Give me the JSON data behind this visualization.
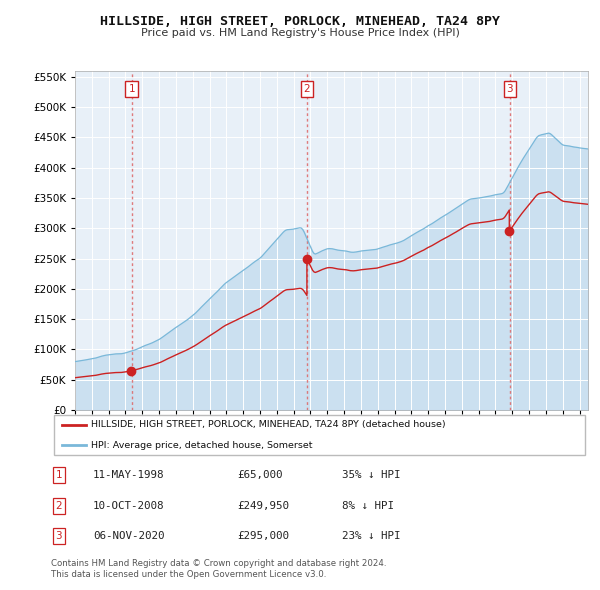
{
  "title": "HILLSIDE, HIGH STREET, PORLOCK, MINEHEAD, TA24 8PY",
  "subtitle": "Price paid vs. HM Land Registry's House Price Index (HPI)",
  "hpi_color": "#7ab8d9",
  "hpi_fill_color": "#c8dff0",
  "price_color": "#cc2222",
  "plot_bg": "#e8f0f8",
  "grid_color": "#ffffff",
  "vline_color": "#dd6666",
  "sales": [
    {
      "date_num": 1998.37,
      "price": 65000,
      "label": "1"
    },
    {
      "date_num": 2008.78,
      "price": 249950,
      "label": "2"
    },
    {
      "date_num": 2020.86,
      "price": 295000,
      "label": "3"
    }
  ],
  "table_rows": [
    {
      "num": "1",
      "date": "11-MAY-1998",
      "price": "£65,000",
      "note": "35% ↓ HPI"
    },
    {
      "num": "2",
      "date": "10-OCT-2008",
      "price": "£249,950",
      "note": "8% ↓ HPI"
    },
    {
      "num": "3",
      "date": "06-NOV-2020",
      "price": "£295,000",
      "note": "23% ↓ HPI"
    }
  ],
  "legend_entries": [
    {
      "label": "HILLSIDE, HIGH STREET, PORLOCK, MINEHEAD, TA24 8PY (detached house)",
      "color": "#cc2222"
    },
    {
      "label": "HPI: Average price, detached house, Somerset",
      "color": "#7ab8d9"
    }
  ],
  "footer1": "Contains HM Land Registry data © Crown copyright and database right 2024.",
  "footer2": "This data is licensed under the Open Government Licence v3.0.",
  "ylim": [
    0,
    560000
  ],
  "xlim": [
    1995.0,
    2025.5
  ],
  "yticks": [
    0,
    50000,
    100000,
    150000,
    200000,
    250000,
    300000,
    350000,
    400000,
    450000,
    500000,
    550000
  ]
}
